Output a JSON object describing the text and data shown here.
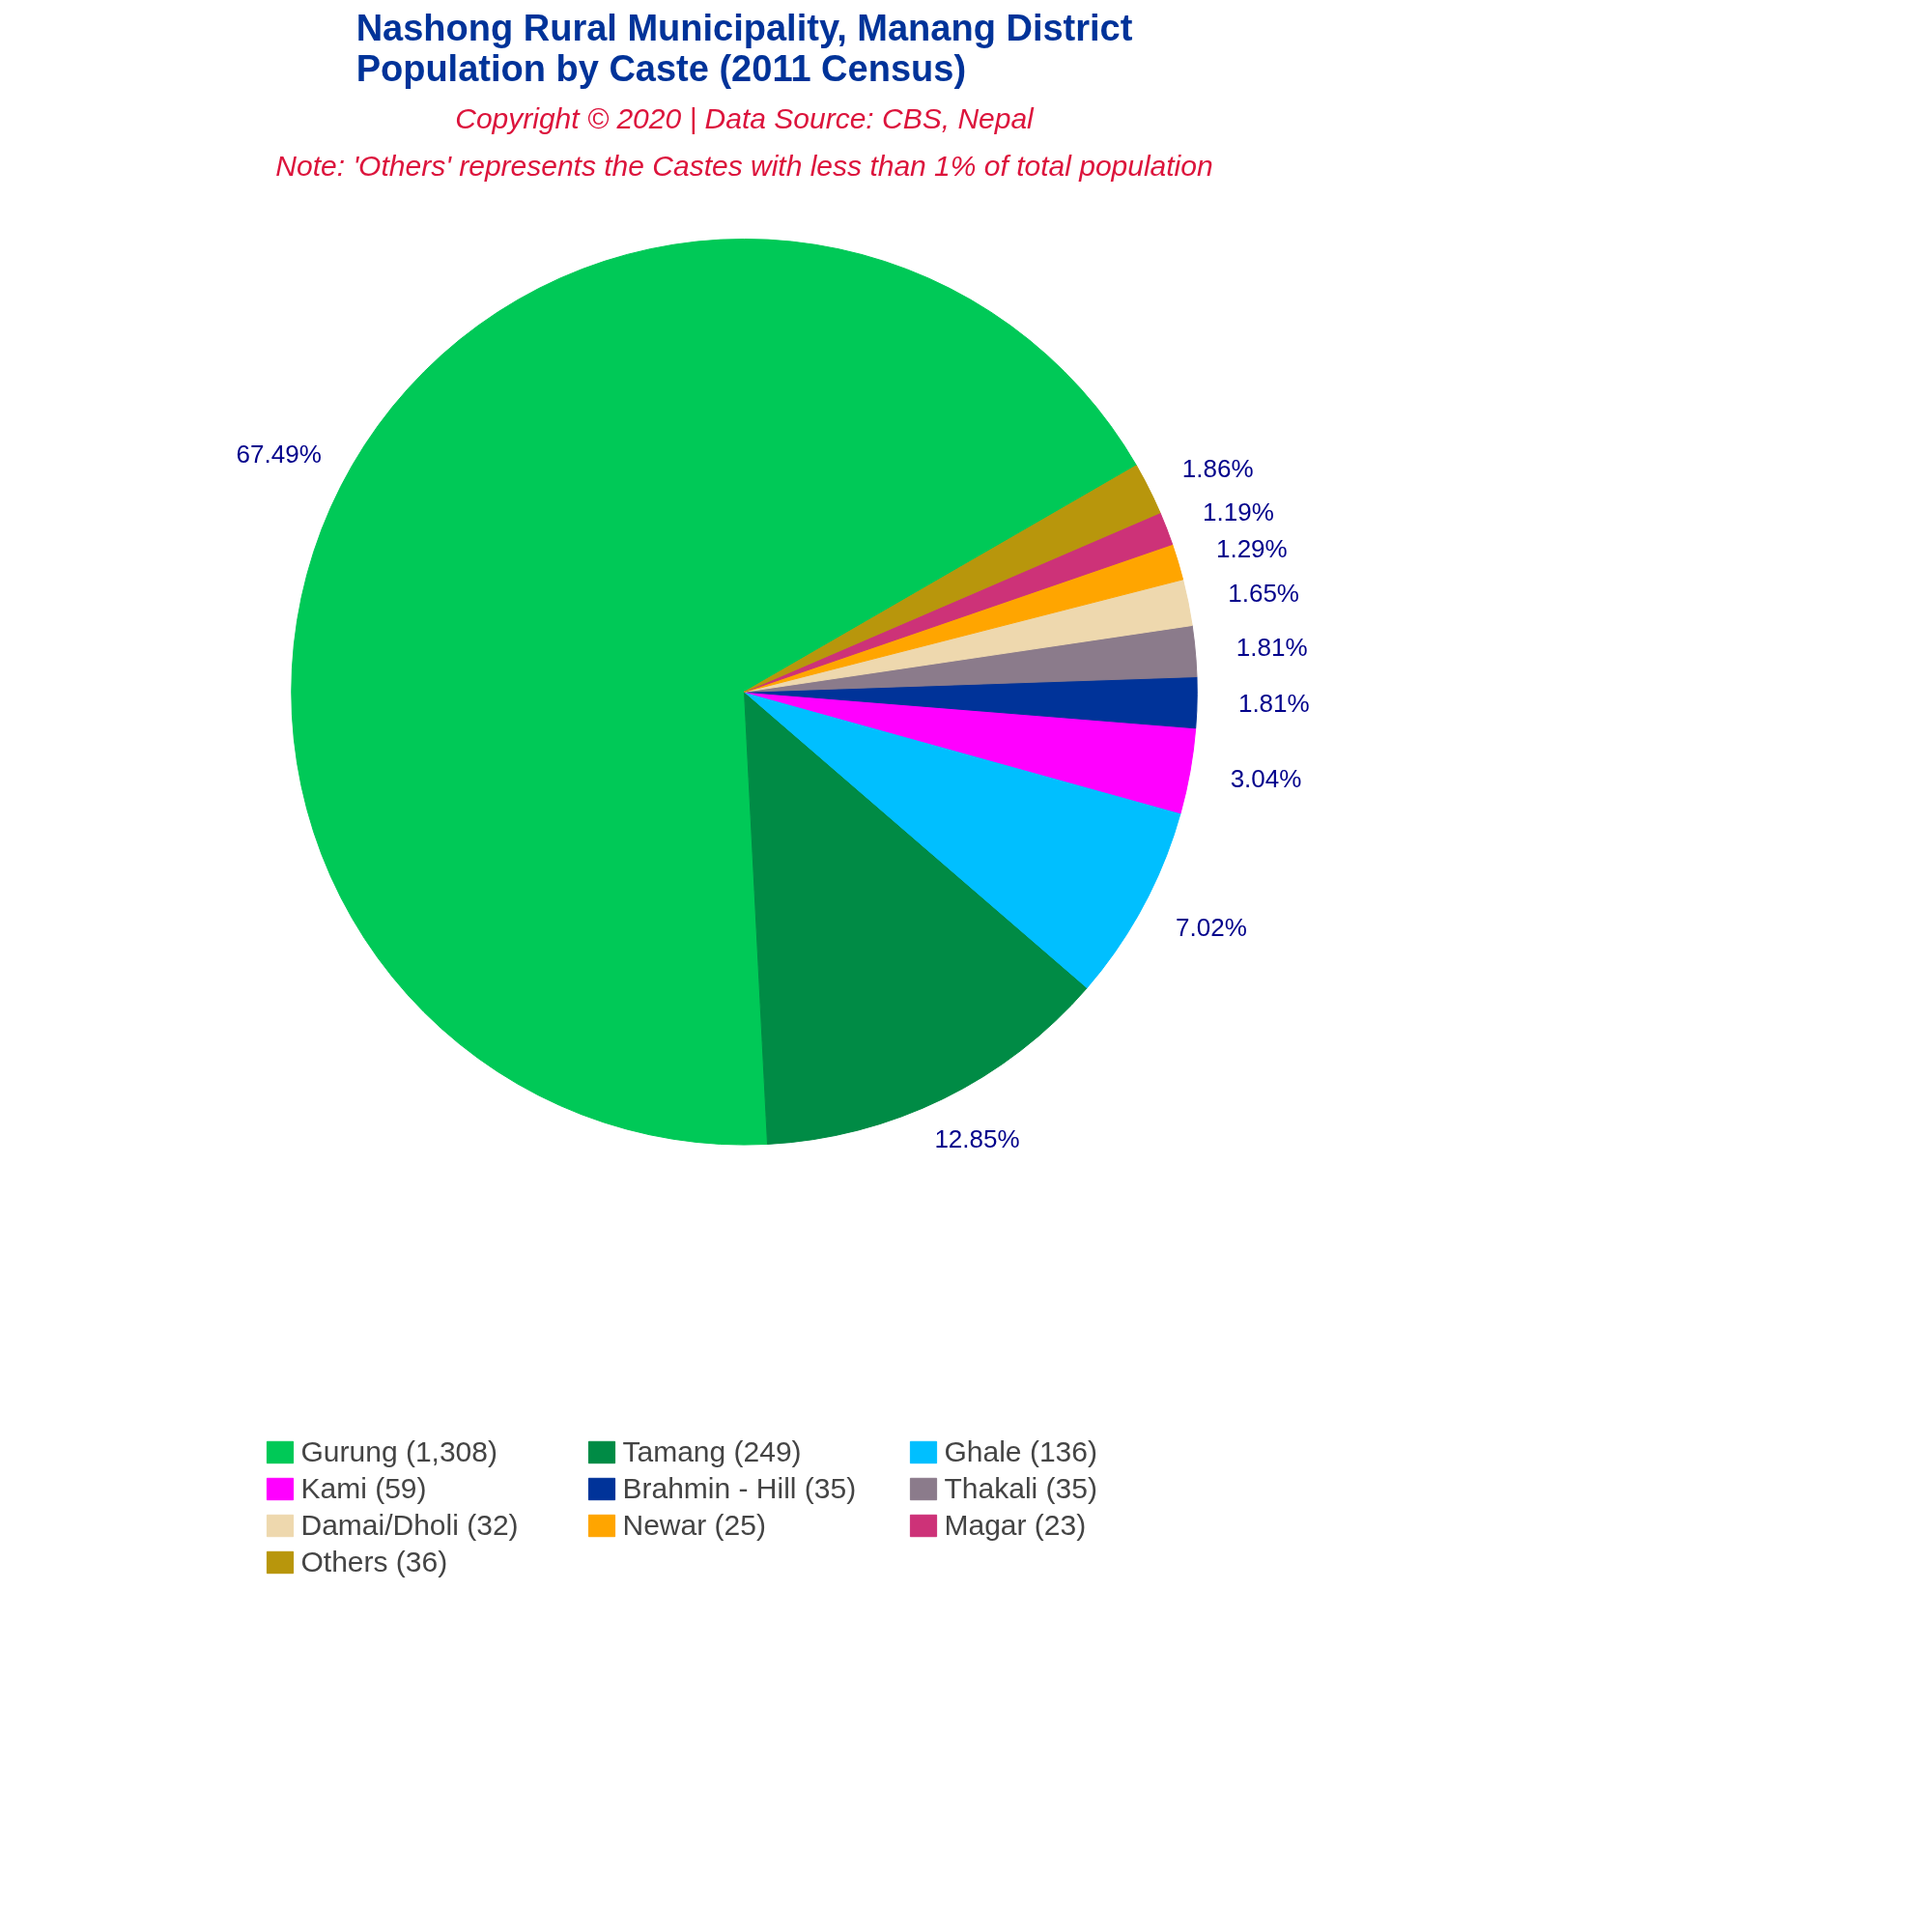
{
  "chart_data": {
    "type": "pie",
    "title": "Nashong Rural Municipality, Manang District\nPopulation by Caste (2011 Census)",
    "annotations": [
      "Copyright © 2020 | Data Source: CBS, Nepal",
      "Note: 'Others' represents the Castes with less than 1% of total population"
    ],
    "categories": [
      "Gurung (1,308)",
      "Tamang (249)",
      "Ghale (136)",
      "Kami (59)",
      "Brahmin - Hill (35)",
      "Thakali (35)",
      "Damai/Dholi (32)",
      "Newar (25)",
      "Magar (23)",
      "Others (36)"
    ],
    "values": [
      67.49,
      12.85,
      7.02,
      3.04,
      1.81,
      1.81,
      1.65,
      1.29,
      1.19,
      1.86
    ],
    "value_labels": [
      "67.49%",
      "12.85%",
      "7.02%",
      "3.04%",
      "1.81%",
      "1.81%",
      "1.65%",
      "1.29%",
      "1.19%",
      "1.86%"
    ],
    "colors": [
      "#00c957",
      "#008b45",
      "#00bfff",
      "#ff00ff",
      "#003399",
      "#8b7b8b",
      "#eed8ae",
      "#ffa500",
      "#cd3278",
      "#b8960c"
    ],
    "legend": "bottom"
  }
}
